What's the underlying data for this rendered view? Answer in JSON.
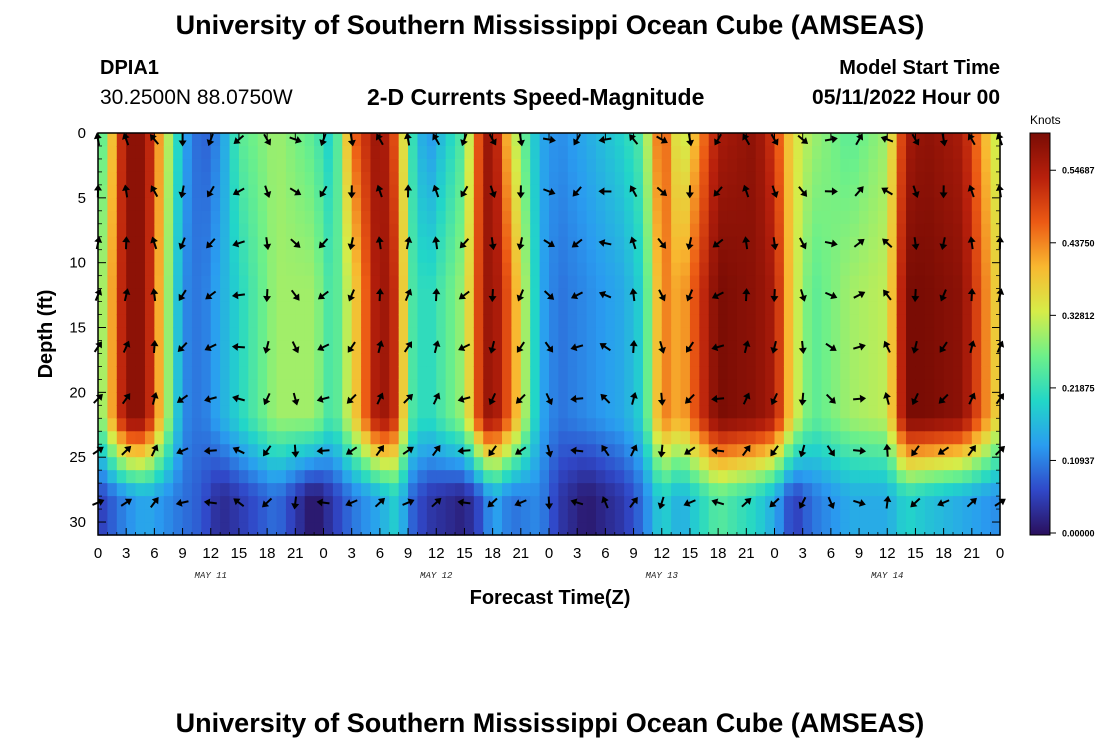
{
  "header": {
    "title": "University of Southern Mississippi Ocean Cube (AMSEAS)",
    "station_id": "DPIA1",
    "station_coords": "30.2500N  88.0750W",
    "subtitle": "2-D Currents Speed-Magnitude",
    "model_start_label": "Model Start Time",
    "model_start_value": "05/11/2022 Hour 00"
  },
  "footer": {
    "title": "University of Southern Mississippi Ocean Cube (AMSEAS)"
  },
  "colorbar": {
    "units": "Knots",
    "tick_labels": [
      "0.54687",
      "0.43750",
      "0.32812",
      "0.21875",
      "0.10937",
      "0.00000"
    ],
    "tick_values": [
      0.54687,
      0.4375,
      0.32812,
      0.21875,
      0.10937,
      0.0
    ],
    "colors": [
      "#2a0f5c",
      "#3048c8",
      "#2a9cf0",
      "#22d6c8",
      "#6cf08a",
      "#d6ec48",
      "#f8b830",
      "#ec5a14",
      "#b8200c",
      "#7a0c04"
    ]
  },
  "chart_data": {
    "type": "heatmap",
    "title": "2-D Currents Speed-Magnitude",
    "xlabel": "Forecast Time(Z)",
    "ylabel": "Depth (ft)",
    "units": "Knots",
    "value_range": [
      0,
      0.6
    ],
    "xlim": [
      0,
      96
    ],
    "ylim": [
      0,
      31
    ],
    "x_tick_hours": [
      0,
      3,
      6,
      9,
      12,
      15,
      18,
      21,
      24,
      27,
      30,
      33,
      36,
      39,
      42,
      45,
      48,
      51,
      54,
      57,
      60,
      63,
      66,
      69,
      72,
      75,
      78,
      81,
      84,
      87,
      90,
      93,
      96
    ],
    "x_tick_labels": [
      "0",
      "3",
      "6",
      "9",
      "12",
      "15",
      "18",
      "21",
      "0",
      "3",
      "6",
      "9",
      "12",
      "15",
      "18",
      "21",
      "0",
      "3",
      "6",
      "9",
      "12",
      "15",
      "18",
      "21",
      "0",
      "3",
      "6",
      "9",
      "12",
      "15",
      "18",
      "21",
      "0"
    ],
    "y_ticks": [
      0,
      5,
      10,
      15,
      20,
      25,
      30
    ],
    "y_tick_labels": [
      "0",
      "5",
      "10",
      "15",
      "20",
      "25",
      "30"
    ],
    "date_labels": [
      {
        "label": "MAY 11",
        "hour": 12
      },
      {
        "label": "MAY 12",
        "hour": 36
      },
      {
        "label": "MAY 13",
        "hour": 60
      },
      {
        "label": "MAY 14",
        "hour": 84
      }
    ],
    "speed_hours": [
      0,
      3,
      5,
      9,
      11,
      13,
      15,
      19,
      23,
      25,
      27,
      30,
      32,
      33,
      35,
      39,
      41,
      42,
      44,
      47,
      49,
      52,
      56,
      58,
      60,
      62,
      66,
      70,
      72,
      74,
      76,
      80,
      84,
      86,
      88,
      92,
      96
    ],
    "speed_surface": [
      0.2,
      0.58,
      0.58,
      0.15,
      0.08,
      0.12,
      0.25,
      0.3,
      0.25,
      0.18,
      0.45,
      0.58,
      0.45,
      0.25,
      0.12,
      0.25,
      0.55,
      0.58,
      0.35,
      0.15,
      0.12,
      0.15,
      0.2,
      0.25,
      0.5,
      0.3,
      0.55,
      0.58,
      0.5,
      0.35,
      0.3,
      0.25,
      0.3,
      0.55,
      0.58,
      0.55,
      0.3
    ],
    "speed_mid": [
      0.25,
      0.58,
      0.58,
      0.12,
      0.1,
      0.15,
      0.2,
      0.3,
      0.3,
      0.22,
      0.35,
      0.58,
      0.5,
      0.25,
      0.2,
      0.3,
      0.55,
      0.58,
      0.45,
      0.15,
      0.1,
      0.12,
      0.15,
      0.2,
      0.45,
      0.4,
      0.6,
      0.58,
      0.55,
      0.35,
      0.25,
      0.3,
      0.32,
      0.6,
      0.6,
      0.58,
      0.35
    ],
    "speed_deep": [
      0.05,
      0.12,
      0.15,
      0.1,
      0.08,
      0.03,
      0.05,
      0.1,
      0.0,
      0.05,
      0.1,
      0.15,
      0.2,
      0.1,
      0.05,
      0.02,
      0.08,
      0.15,
      0.1,
      0.12,
      0.05,
      0.01,
      0.05,
      0.1,
      0.2,
      0.15,
      0.25,
      0.2,
      0.15,
      0.05,
      0.1,
      0.15,
      0.15,
      0.2,
      0.18,
      0.15,
      0.12
    ],
    "vector_depths_ft": [
      0.5,
      4.5,
      8.5,
      12.5,
      16.5,
      20.5,
      24.5,
      28.5
    ],
    "vector_hours": [
      0,
      3,
      6,
      9,
      12,
      15,
      18,
      21,
      24,
      27,
      30,
      33,
      36,
      39,
      42,
      45,
      48,
      51,
      54,
      57,
      60,
      63,
      66,
      69,
      72,
      75,
      78,
      81,
      84,
      87,
      90,
      93,
      96
    ],
    "vector_angles_deg": [
      260,
      250,
      230,
      90,
      110,
      140,
      60,
      20,
      110,
      80,
      240,
      260,
      240,
      110,
      60,
      80,
      10,
      120,
      170,
      230,
      30,
      80,
      120,
      240,
      60,
      40,
      350,
      300,
      200,
      60,
      80,
      240,
      250
    ]
  }
}
